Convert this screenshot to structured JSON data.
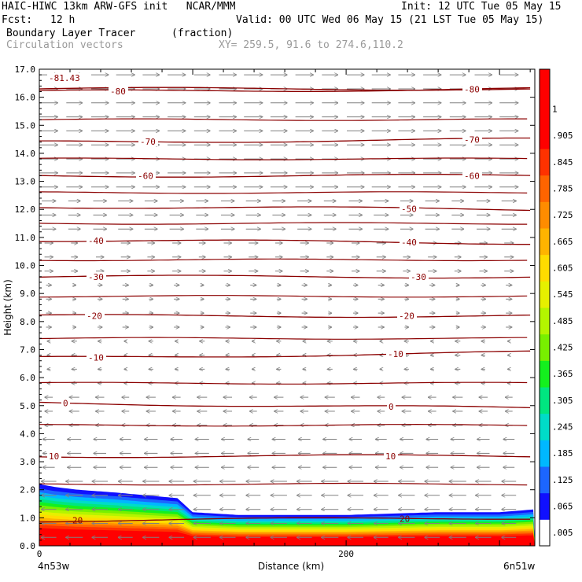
{
  "header": {
    "model_line": "HAIC-HIWC 13km ARW-GFS init   NCAR/MMM",
    "init": "Init: 12 UTC Tue 05 May 15",
    "fcst_label": "Fcst:",
    "fcst_value": "12 h",
    "valid": "Valid: 00 UTC Wed 06 May 15 (21 LST Tue 05 May 15)",
    "field_name": "Boundary Layer Tracer",
    "field_units": "(fraction)",
    "overlay": "Circulation vectors",
    "xy": "XY= 259.5, 91.6 to 274.6,110.2"
  },
  "colors": {
    "contour": "#8b0000",
    "vector": "#808080",
    "axis": "#000000"
  },
  "chart_data": {
    "type": "cross-section",
    "title": "Boundary Layer Tracer",
    "ylabel": "Height (km)",
    "xlabel": "Distance (km)",
    "ylim": [
      0,
      17
    ],
    "xlim": [
      0,
      323
    ],
    "y_ticks": [
      "0.0",
      "1.0",
      "2.0",
      "3.0",
      "4.0",
      "5.0",
      "6.0",
      "7.0",
      "8.0",
      "9.0",
      "10.0",
      "11.0",
      "12.0",
      "13.0",
      "14.0",
      "15.0",
      "16.0",
      "17.0"
    ],
    "x_tick_labels": [
      "0",
      "200"
    ],
    "x_ticks": [
      0,
      200
    ],
    "left_endpoint": "4n53w",
    "right_endpoint": "6n51w",
    "colorbar": {
      "labels": [
        ".005",
        ".065",
        ".125",
        ".185",
        ".245",
        ".305",
        ".365",
        ".425",
        ".485",
        ".545",
        ".605",
        ".665",
        ".725",
        ".785",
        ".845",
        ".905",
        "1"
      ],
      "colors": [
        "#ffffff",
        "#1010ff",
        "#1c66ff",
        "#00b8ff",
        "#00dcc8",
        "#00e680",
        "#14f01e",
        "#78f000",
        "#b4f500",
        "#e6f000",
        "#ffdc00",
        "#ffb400",
        "#ff8c00",
        "#ff6400",
        "#ff3200",
        "#ff0000",
        "#ff0000",
        "#ff0000"
      ]
    },
    "temperature_contours": [
      {
        "label": "-81.43",
        "y_left": 16.3,
        "y_right": 16.3
      },
      {
        "label": "-80",
        "y_left": 16.2,
        "y_right": 16.3
      },
      {
        "label": "-70",
        "y_left": 14.4,
        "y_right": 14.5
      },
      {
        "label": "-60",
        "y_left": 13.2,
        "y_right": 13.2
      },
      {
        "label": "-50",
        "y_left": 12.1,
        "y_right": 12.0
      },
      {
        "label": "-40",
        "y_left": 10.9,
        "y_right": 10.8
      },
      {
        "label": "-30",
        "y_left": 9.6,
        "y_right": 9.6
      },
      {
        "label": "-20",
        "y_left": 8.2,
        "y_right": 8.2
      },
      {
        "label": "-10",
        "y_left": 6.7,
        "y_right": 6.9
      },
      {
        "label": "0",
        "y_left": 5.1,
        "y_right": 4.9
      },
      {
        "label": "10",
        "y_left": 3.2,
        "y_right": 3.2
      },
      {
        "label": "20",
        "y_left": 0.9,
        "y_right": 1.0
      }
    ],
    "tracer_top_km": [
      {
        "x": 0,
        "y": 2.2
      },
      {
        "x": 10,
        "y": 2.1
      },
      {
        "x": 25,
        "y": 2.0
      },
      {
        "x": 50,
        "y": 1.9
      },
      {
        "x": 90,
        "y": 1.7
      },
      {
        "x": 100,
        "y": 1.2
      },
      {
        "x": 130,
        "y": 1.1
      },
      {
        "x": 200,
        "y": 1.1
      },
      {
        "x": 260,
        "y": 1.2
      },
      {
        "x": 300,
        "y": 1.2
      },
      {
        "x": 323,
        "y": 1.3
      }
    ]
  }
}
